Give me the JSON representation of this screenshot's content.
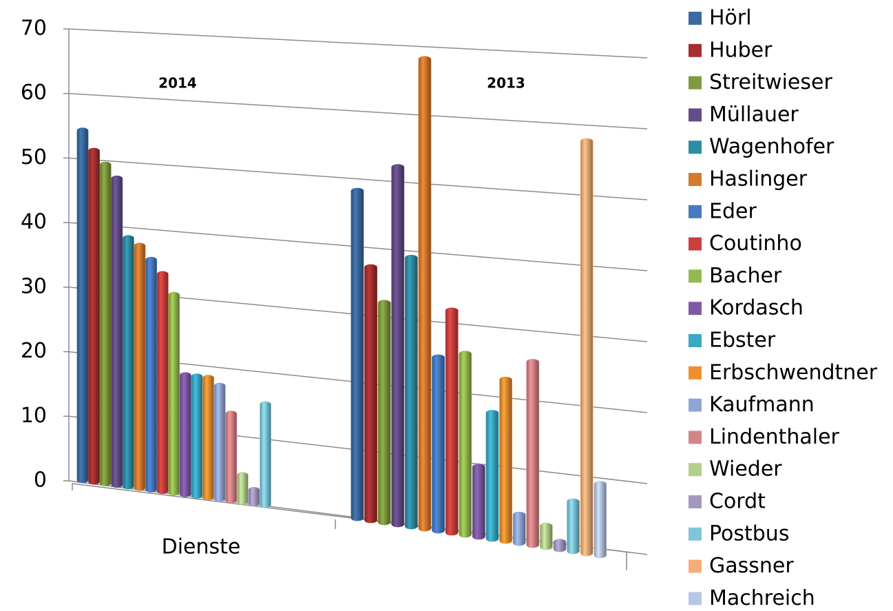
{
  "chart_data": {
    "type": "bar",
    "categories": [
      "Dienste",
      null
    ],
    "annotations": [
      "2014",
      "2013"
    ],
    "ylim": [
      0,
      70
    ],
    "yticks": [
      0,
      10,
      20,
      30,
      40,
      50,
      60,
      70
    ],
    "grid": true,
    "legend": "right",
    "series": [
      {
        "name": "Hörl",
        "color": "#3b6aa0",
        "values": [
          54,
          48
        ]
      },
      {
        "name": "Huber",
        "color": "#a5302f",
        "values": [
          51,
          37
        ]
      },
      {
        "name": "Streitwieser",
        "color": "#7f9a3f",
        "values": [
          49,
          32
        ]
      },
      {
        "name": "Müllauer",
        "color": "#634c87",
        "values": [
          47,
          52
        ]
      },
      {
        "name": "Wagenhofer",
        "color": "#2e8da3",
        "values": [
          38,
          39
        ]
      },
      {
        "name": "Haslinger",
        "color": "#d47a2e",
        "values": [
          37,
          68
        ]
      },
      {
        "name": "Eder",
        "color": "#4679c0",
        "values": [
          35,
          25
        ]
      },
      {
        "name": "Coutinho",
        "color": "#c9403e",
        "values": [
          33,
          32
        ]
      },
      {
        "name": "Bacher",
        "color": "#94b94e",
        "values": [
          30,
          26
        ]
      },
      {
        "name": "Kordasch",
        "color": "#7d5aa4",
        "values": [
          18,
          10
        ]
      },
      {
        "name": "Ebster",
        "color": "#3aa8c4",
        "values": [
          18,
          18
        ]
      },
      {
        "name": "Erbschwendtner",
        "color": "#f08f30",
        "values": [
          18,
          23
        ]
      },
      {
        "name": "Kaufmann",
        "color": "#8ea6d6",
        "values": [
          17,
          4
        ]
      },
      {
        "name": "Lindenthaler",
        "color": "#d58486",
        "values": [
          13,
          26
        ]
      },
      {
        "name": "Wieder",
        "color": "#b3cf8d",
        "values": [
          4,
          3
        ]
      },
      {
        "name": "Cordt",
        "color": "#a697c1",
        "values": [
          2,
          1
        ]
      },
      {
        "name": "Postbus",
        "color": "#7fc6d8",
        "values": [
          15,
          7
        ]
      },
      {
        "name": "Gassner",
        "color": "#f8ad78",
        "values": [
          null,
          58
        ]
      },
      {
        "name": "Machreich",
        "color": "#b7c6e4",
        "values": [
          null,
          10
        ]
      }
    ]
  }
}
